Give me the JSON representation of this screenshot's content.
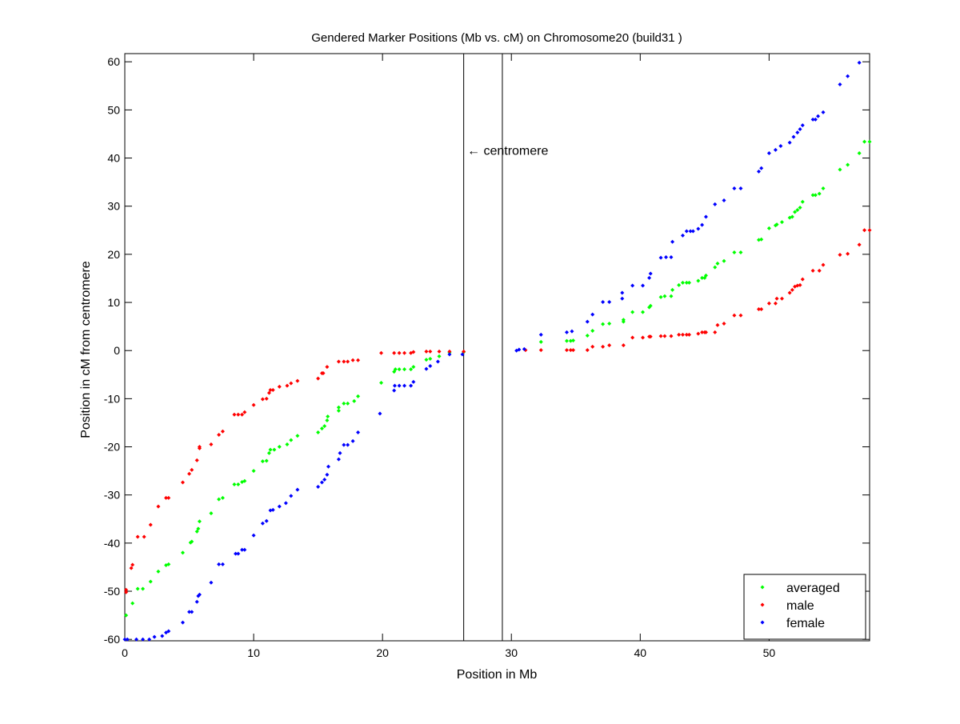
{
  "chart_data": {
    "type": "scatter",
    "title": "Gendered Marker Positions (Mb vs. cM) on Chromosome20 (build31 )",
    "xlabel": "Position in Mb",
    "ylabel": "Position in cM from centromere",
    "xlim": [
      0,
      57.8
    ],
    "ylim": [
      -60.3,
      61.7
    ],
    "xticks": [
      0,
      10,
      20,
      30,
      40,
      50
    ],
    "yticks": [
      -60,
      -50,
      -40,
      -30,
      -20,
      -10,
      0,
      10,
      20,
      30,
      40,
      50,
      60
    ],
    "grid": false,
    "legend_position": "bottom-right",
    "centromere_lines": [
      26.3,
      29.3
    ],
    "annotation": {
      "text": "← centromere",
      "x": 28.0,
      "y": 41.7
    },
    "series": [
      {
        "name": "averaged",
        "color": "#00ff00",
        "points": [
          [
            0.1,
            -55
          ],
          [
            0.6,
            -52.5
          ],
          [
            1,
            -49.5
          ],
          [
            1.4,
            -49.5
          ],
          [
            2,
            -48
          ],
          [
            2.6,
            -45.9
          ],
          [
            3.2,
            -44.6
          ],
          [
            3.4,
            -44.4
          ],
          [
            4.5,
            -42
          ],
          [
            5.1,
            -39.9
          ],
          [
            5.2,
            -39.7
          ],
          [
            5.6,
            -37.6
          ],
          [
            5.7,
            -37
          ],
          [
            5.8,
            -35.5
          ],
          [
            6.7,
            -33.8
          ],
          [
            7.3,
            -30.9
          ],
          [
            7.6,
            -30.6
          ],
          [
            8.5,
            -27.8
          ],
          [
            8.8,
            -27.8
          ],
          [
            9.1,
            -27.3
          ],
          [
            9.3,
            -27.1
          ],
          [
            10,
            -25
          ],
          [
            10.7,
            -23
          ],
          [
            11,
            -22.9
          ],
          [
            11.2,
            -21.3
          ],
          [
            11.3,
            -20.6
          ],
          [
            11.6,
            -20.6
          ],
          [
            12,
            -20
          ],
          [
            12.6,
            -19.5
          ],
          [
            12.9,
            -18.6
          ],
          [
            13.4,
            -17.7
          ],
          [
            15,
            -17
          ],
          [
            15.3,
            -16.2
          ],
          [
            15.5,
            -15.7
          ],
          [
            15.7,
            -14.5
          ],
          [
            15.75,
            -13.7
          ],
          [
            16.6,
            -12.5
          ],
          [
            16.6,
            -11.8
          ],
          [
            17,
            -11
          ],
          [
            17.3,
            -11
          ],
          [
            17.8,
            -10.5
          ],
          [
            18.1,
            -9.5
          ],
          [
            19.9,
            -6.7
          ],
          [
            20.9,
            -4.4
          ],
          [
            21,
            -3.9
          ],
          [
            21.3,
            -3.9
          ],
          [
            21.7,
            -3.9
          ],
          [
            22.2,
            -3.9
          ],
          [
            22.4,
            -3.4
          ],
          [
            23.4,
            -1.9
          ],
          [
            23.7,
            -1.7
          ],
          [
            24.4,
            -1.2
          ],
          [
            25.2,
            -0.4
          ],
          [
            26.3,
            -0.3
          ],
          [
            32.3,
            1.8
          ],
          [
            34.3,
            2
          ],
          [
            34.6,
            2
          ],
          [
            34.8,
            2.1
          ],
          [
            35.9,
            3.1
          ],
          [
            36.3,
            4.1
          ],
          [
            37.1,
            5.5
          ],
          [
            37.6,
            5.6
          ],
          [
            38.7,
            6
          ],
          [
            38.7,
            6.4
          ],
          [
            39.4,
            8
          ],
          [
            40.2,
            8
          ],
          [
            40.7,
            9
          ],
          [
            40.8,
            9.3
          ],
          [
            41.6,
            11.1
          ],
          [
            41.9,
            11.3
          ],
          [
            42.4,
            11.3
          ],
          [
            42.5,
            12.6
          ],
          [
            43,
            13.6
          ],
          [
            43.3,
            14.1
          ],
          [
            43.6,
            14.1
          ],
          [
            43.8,
            14.1
          ],
          [
            44.5,
            14.5
          ],
          [
            44.8,
            15.1
          ],
          [
            45,
            15.1
          ],
          [
            45.1,
            15.6
          ],
          [
            45.8,
            17.3
          ],
          [
            46,
            18.1
          ],
          [
            46.5,
            18.6
          ],
          [
            47.3,
            20.4
          ],
          [
            47.8,
            20.4
          ],
          [
            49.2,
            23
          ],
          [
            49.4,
            23.1
          ],
          [
            50,
            25.4
          ],
          [
            50.5,
            26
          ],
          [
            50.6,
            26.2
          ],
          [
            51,
            26.7
          ],
          [
            51.6,
            27.6
          ],
          [
            51.8,
            27.8
          ],
          [
            52,
            28.8
          ],
          [
            52.2,
            29.2
          ],
          [
            52.4,
            29.7
          ],
          [
            52.6,
            30.9
          ],
          [
            53.4,
            32.3
          ],
          [
            53.6,
            32.3
          ],
          [
            53.9,
            32.6
          ],
          [
            54.2,
            33.7
          ],
          [
            55.5,
            37.6
          ],
          [
            56.1,
            38.6
          ],
          [
            57,
            41
          ],
          [
            57.4,
            43.4
          ],
          [
            57.8,
            43.4
          ]
        ]
      },
      {
        "name": "male",
        "color": "#ff0000",
        "points": [
          [
            0.1,
            -49.7
          ],
          [
            0.1,
            -50.2
          ],
          [
            0.5,
            -45.2
          ],
          [
            0.6,
            -44.5
          ],
          [
            1,
            -38.7
          ],
          [
            1.5,
            -38.7
          ],
          [
            2,
            -36.2
          ],
          [
            2.6,
            -32.4
          ],
          [
            3.2,
            -30.6
          ],
          [
            3.4,
            -30.6
          ],
          [
            4.5,
            -27.4
          ],
          [
            5,
            -25.6
          ],
          [
            5.2,
            -24.8
          ],
          [
            5.6,
            -22.8
          ],
          [
            5.8,
            -20.3
          ],
          [
            5.8,
            -20
          ],
          [
            6.7,
            -19.5
          ],
          [
            7.3,
            -17.5
          ],
          [
            7.6,
            -16.8
          ],
          [
            8.5,
            -13.3
          ],
          [
            8.8,
            -13.3
          ],
          [
            9.1,
            -13.3
          ],
          [
            9.3,
            -12.8
          ],
          [
            10,
            -11.3
          ],
          [
            10.7,
            -10.1
          ],
          [
            11,
            -10
          ],
          [
            11.2,
            -8.8
          ],
          [
            11.3,
            -8.2
          ],
          [
            11.5,
            -8.2
          ],
          [
            12,
            -7.5
          ],
          [
            12.6,
            -7.3
          ],
          [
            12.9,
            -6.8
          ],
          [
            13.4,
            -6.3
          ],
          [
            15,
            -5.8
          ],
          [
            15.3,
            -4.7
          ],
          [
            15.4,
            -4.7
          ],
          [
            15.7,
            -3.4
          ],
          [
            16.6,
            -2.3
          ],
          [
            17,
            -2.3
          ],
          [
            17.3,
            -2.3
          ],
          [
            17.7,
            -2
          ],
          [
            18.1,
            -2
          ],
          [
            19.9,
            -0.5
          ],
          [
            20.9,
            -0.5
          ],
          [
            21.3,
            -0.5
          ],
          [
            21.7,
            -0.5
          ],
          [
            22.2,
            -0.5
          ],
          [
            22.4,
            -0.3
          ],
          [
            23.4,
            -0.2
          ],
          [
            23.7,
            -0.2
          ],
          [
            24.4,
            -0.2
          ],
          [
            25.2,
            -0.2
          ],
          [
            26.3,
            -0.2
          ],
          [
            31.1,
            0.1
          ],
          [
            32.3,
            0.1
          ],
          [
            34.3,
            0.1
          ],
          [
            34.6,
            0.1
          ],
          [
            34.8,
            0.1
          ],
          [
            35.9,
            0.1
          ],
          [
            36.3,
            0.8
          ],
          [
            37.1,
            0.8
          ],
          [
            37.6,
            1.1
          ],
          [
            38.7,
            1.1
          ],
          [
            39.4,
            2.7
          ],
          [
            40.2,
            2.7
          ],
          [
            40.7,
            2.9
          ],
          [
            40.8,
            2.9
          ],
          [
            41.6,
            3
          ],
          [
            41.9,
            3
          ],
          [
            42.4,
            3
          ],
          [
            43,
            3.3
          ],
          [
            43.3,
            3.3
          ],
          [
            43.6,
            3.3
          ],
          [
            43.8,
            3.3
          ],
          [
            44.5,
            3.5
          ],
          [
            44.8,
            3.8
          ],
          [
            45,
            3.8
          ],
          [
            45.1,
            3.8
          ],
          [
            45.8,
            3.8
          ],
          [
            46,
            5.3
          ],
          [
            46.5,
            5.6
          ],
          [
            47.3,
            7.3
          ],
          [
            47.8,
            7.3
          ],
          [
            49.2,
            8.6
          ],
          [
            49.4,
            8.6
          ],
          [
            50,
            9.8
          ],
          [
            50.5,
            9.8
          ],
          [
            50.6,
            10.8
          ],
          [
            51,
            10.8
          ],
          [
            51.6,
            12
          ],
          [
            51.8,
            12.6
          ],
          [
            52,
            13.3
          ],
          [
            52.2,
            13.5
          ],
          [
            52.4,
            13.6
          ],
          [
            52.6,
            14.8
          ],
          [
            53.4,
            16.6
          ],
          [
            53.9,
            16.6
          ],
          [
            54.2,
            17.8
          ],
          [
            55.5,
            19.9
          ],
          [
            56.1,
            20.1
          ],
          [
            57,
            22
          ],
          [
            57.4,
            25
          ],
          [
            57.8,
            25
          ]
        ]
      },
      {
        "name": "female",
        "color": "#0000ff",
        "points": [
          [
            0,
            -60
          ],
          [
            0.2,
            -60
          ],
          [
            0.9,
            -60
          ],
          [
            1.4,
            -60
          ],
          [
            1.9,
            -60
          ],
          [
            2.3,
            -59.5
          ],
          [
            2.9,
            -59.3
          ],
          [
            3.2,
            -58.6
          ],
          [
            3.4,
            -58.3
          ],
          [
            4.5,
            -56.5
          ],
          [
            5,
            -54.3
          ],
          [
            5.2,
            -54.3
          ],
          [
            5.6,
            -52.2
          ],
          [
            5.7,
            -51
          ],
          [
            5.8,
            -50.7
          ],
          [
            6.7,
            -48.2
          ],
          [
            7.3,
            -44.4
          ],
          [
            7.6,
            -44.4
          ],
          [
            8.6,
            -42.2
          ],
          [
            8.8,
            -42.2
          ],
          [
            9.1,
            -41.4
          ],
          [
            9.3,
            -41.4
          ],
          [
            10,
            -38.4
          ],
          [
            10.7,
            -35.9
          ],
          [
            11,
            -35.4
          ],
          [
            11.3,
            -33.2
          ],
          [
            11.5,
            -33.1
          ],
          [
            12,
            -32.4
          ],
          [
            12.5,
            -31.7
          ],
          [
            12.9,
            -30.2
          ],
          [
            13.4,
            -28.9
          ],
          [
            15,
            -28.3
          ],
          [
            15.3,
            -27.4
          ],
          [
            15.5,
            -26.8
          ],
          [
            15.7,
            -25.8
          ],
          [
            15.8,
            -24.1
          ],
          [
            16.6,
            -22.6
          ],
          [
            16.7,
            -21.3
          ],
          [
            17,
            -19.6
          ],
          [
            17.3,
            -19.6
          ],
          [
            17.7,
            -18.8
          ],
          [
            18.1,
            -17
          ],
          [
            19.8,
            -13.1
          ],
          [
            20.9,
            -8.3
          ],
          [
            20.95,
            -7.3
          ],
          [
            21.3,
            -7.3
          ],
          [
            21.7,
            -7.3
          ],
          [
            22.2,
            -7.3
          ],
          [
            22.4,
            -6.5
          ],
          [
            23.4,
            -3.8
          ],
          [
            23.7,
            -3.2
          ],
          [
            24.3,
            -2.3
          ],
          [
            25.2,
            -0.8
          ],
          [
            26.2,
            -0.8
          ],
          [
            30.4,
            0
          ],
          [
            30.6,
            0.2
          ],
          [
            31,
            0.3
          ],
          [
            32.3,
            3.3
          ],
          [
            34.3,
            3.8
          ],
          [
            34.7,
            4
          ],
          [
            35.9,
            6
          ],
          [
            36.3,
            7.5
          ],
          [
            37.1,
            10.1
          ],
          [
            37.6,
            10.1
          ],
          [
            38.6,
            12
          ],
          [
            38.6,
            10.8
          ],
          [
            39.4,
            13.5
          ],
          [
            40.2,
            13.5
          ],
          [
            40.7,
            15.1
          ],
          [
            40.8,
            16
          ],
          [
            41.6,
            19.3
          ],
          [
            42,
            19.4
          ],
          [
            42.4,
            19.4
          ],
          [
            42.5,
            22.6
          ],
          [
            43.3,
            23.9
          ],
          [
            43.6,
            24.8
          ],
          [
            43.9,
            24.8
          ],
          [
            44.1,
            24.8
          ],
          [
            44.5,
            25.3
          ],
          [
            44.8,
            26.1
          ],
          [
            45.1,
            27.8
          ],
          [
            45.8,
            30.4
          ],
          [
            46.5,
            31.2
          ],
          [
            47.3,
            33.7
          ],
          [
            47.8,
            33.7
          ],
          [
            49.2,
            37.2
          ],
          [
            49.4,
            37.9
          ],
          [
            50,
            41
          ],
          [
            50.5,
            41.7
          ],
          [
            50.9,
            42.5
          ],
          [
            51.6,
            43.2
          ],
          [
            51.9,
            44.4
          ],
          [
            52.2,
            45.3
          ],
          [
            52.4,
            46
          ],
          [
            52.6,
            46.8
          ],
          [
            53.4,
            48
          ],
          [
            53.6,
            48
          ],
          [
            53.8,
            48.7
          ],
          [
            54.2,
            49.5
          ],
          [
            55.5,
            55.3
          ],
          [
            56.1,
            57
          ],
          [
            57,
            59.8
          ]
        ]
      }
    ]
  }
}
